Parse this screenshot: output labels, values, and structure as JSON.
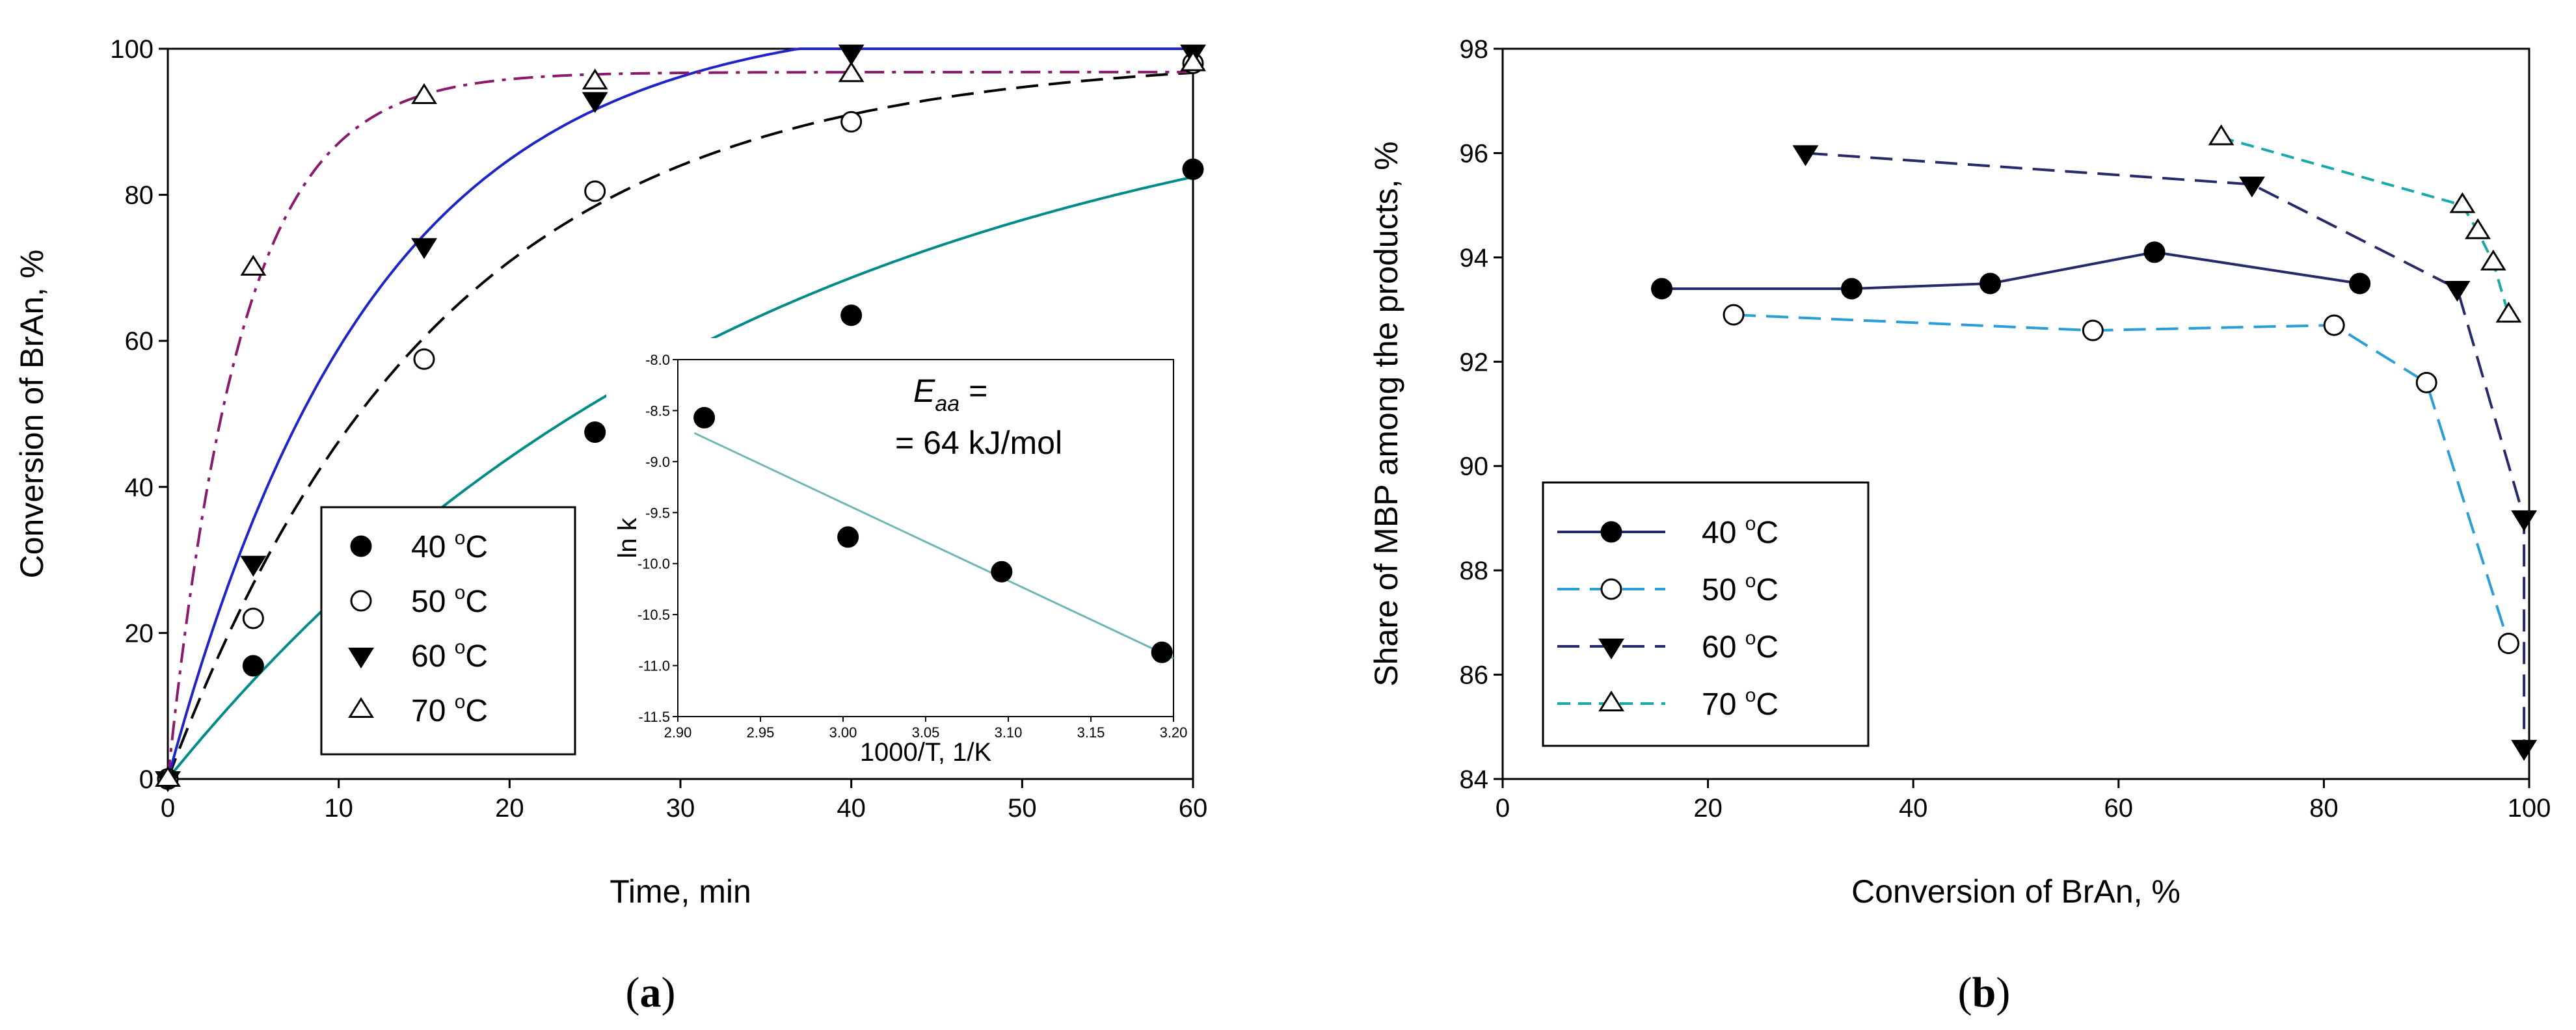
{
  "chart_data": [
    {
      "type": "line",
      "panel_label": "a",
      "xlabel": "Time, min",
      "ylabel": "Conversion of BrAn, %",
      "xlim": [
        0,
        60
      ],
      "ylim": [
        0,
        100
      ],
      "xticks": [
        0,
        10,
        20,
        30,
        40,
        50,
        60
      ],
      "yticks": [
        0,
        20,
        40,
        60,
        80,
        100
      ],
      "legend_position": "bottom-left",
      "series": [
        {
          "name": "40 °C",
          "label_num": "40",
          "label_unit": "C",
          "label_sup": "o",
          "marker": "filled-circle",
          "color": "#008b8b",
          "line": "solid",
          "x": [
            0,
            5,
            25,
            40,
            60
          ],
          "y": [
            0,
            15.5,
            47.5,
            63.5,
            83.5
          ]
        },
        {
          "name": "50 °C",
          "label_num": "50",
          "label_unit": "C",
          "label_sup": "o",
          "marker": "open-circle",
          "color": "#000000",
          "line": "dashed",
          "x": [
            0,
            5,
            15,
            25,
            40,
            60
          ],
          "y": [
            0,
            22,
            57.5,
            80.5,
            90,
            98
          ]
        },
        {
          "name": "60 °C",
          "label_num": "60",
          "label_unit": "C",
          "label_sup": "o",
          "marker": "filled-triangle-down",
          "color": "#1f24c8",
          "line": "solid",
          "x": [
            0,
            5,
            15,
            25,
            40,
            60
          ],
          "y": [
            0,
            29.5,
            73,
            93,
            99.5,
            99.5
          ]
        },
        {
          "name": "70 °C",
          "label_num": "70",
          "label_unit": "C",
          "label_sup": "o",
          "marker": "open-triangle-up",
          "color": "#8b1a6e",
          "line": "dash-dot",
          "x": [
            0,
            5,
            15,
            25,
            40,
            60
          ],
          "y": [
            0,
            70,
            93.5,
            95.5,
            96.5,
            98
          ]
        }
      ],
      "inset": {
        "type": "scatter",
        "xlabel": "1000/T, 1/K",
        "ylabel": "ln k",
        "xlim": [
          2.9,
          3.2
        ],
        "ylim": [
          -11.5,
          -8.0
        ],
        "xticks": [
          "2.90",
          "2.95",
          "3.00",
          "3.05",
          "3.10",
          "3.15",
          "3.20"
        ],
        "yticks": [
          "-8.0",
          "-8.5",
          "-9.0",
          "-9.5",
          "-10.0",
          "-10.5",
          "-11.0",
          "-11.5"
        ],
        "x": [
          2.916,
          3.003,
          3.096,
          3.193
        ],
        "y": [
          -8.57,
          -9.74,
          -10.08,
          -10.87
        ],
        "fit_line": {
          "x": [
            2.91,
            3.2
          ],
          "y": [
            -8.72,
            -10.93
          ],
          "color": "#6fb7b7"
        },
        "annotation": {
          "symbol": "E",
          "subscript": "aa",
          "line1_suffix": " =",
          "line2": "= 64 kJ/mol"
        }
      }
    },
    {
      "type": "line",
      "panel_label": "b",
      "xlabel": "Conversion of BrAn, %",
      "ylabel": "Share of MBP among the products, %",
      "xlim": [
        0,
        100
      ],
      "ylim": [
        84,
        98
      ],
      "xticks": [
        0,
        20,
        40,
        60,
        80,
        100
      ],
      "yticks": [
        84,
        86,
        88,
        90,
        92,
        94,
        96,
        98
      ],
      "legend_position": "bottom-left",
      "series": [
        {
          "name": "40 °C",
          "label_num": "40",
          "label_unit": "C",
          "label_sup": "o",
          "marker": "filled-circle",
          "color": "#262a6b",
          "line": "solid",
          "x": [
            15.5,
            34,
            47.5,
            63.5,
            83.5
          ],
          "y": [
            93.4,
            93.4,
            93.5,
            94.1,
            93.5
          ]
        },
        {
          "name": "50 °C",
          "label_num": "50",
          "label_unit": "C",
          "label_sup": "o",
          "marker": "open-circle",
          "color": "#2a9ed6",
          "line": "dashed",
          "x": [
            22.5,
            57.5,
            81,
            90,
            98
          ],
          "y": [
            92.9,
            92.6,
            92.7,
            91.6,
            86.6
          ]
        },
        {
          "name": "60 °C",
          "label_num": "60",
          "label_unit": "C",
          "label_sup": "o",
          "marker": "filled-triangle-down",
          "color": "#262a6b",
          "line": "dashed",
          "x": [
            29.5,
            73,
            93,
            99.5,
            99.5
          ],
          "y": [
            96.0,
            95.4,
            93.4,
            89.0,
            84.6
          ]
        },
        {
          "name": "70 °C",
          "label_num": "70",
          "label_unit": "C",
          "label_sup": "o",
          "marker": "open-triangle-up",
          "color": "#1aa9a9",
          "line": "short-dashed",
          "x": [
            70,
            93.5,
            95,
            96.5,
            98
          ],
          "y": [
            96.3,
            95.0,
            94.5,
            93.9,
            92.9
          ]
        }
      ]
    }
  ]
}
